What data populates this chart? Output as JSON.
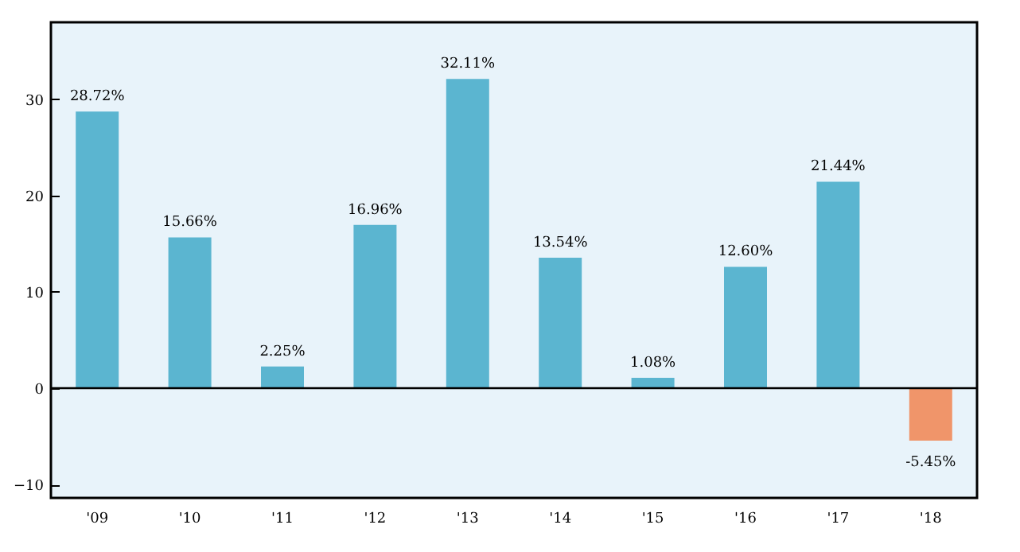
{
  "chart_data": {
    "type": "bar",
    "categories": [
      "'09",
      "'10",
      "'11",
      "'12",
      "'13",
      "'14",
      "'15",
      "'16",
      "'17",
      "'18"
    ],
    "values": [
      28.72,
      15.66,
      2.25,
      16.96,
      32.11,
      13.54,
      1.08,
      12.6,
      21.44,
      -5.45
    ],
    "colors": [
      "#5bb5d0",
      "#5bb5d0",
      "#5bb5d0",
      "#5bb5d0",
      "#5bb5d0",
      "#5bb5d0",
      "#5bb5d0",
      "#5bb5d0",
      "#5bb5d0",
      "#f0956a"
    ],
    "value_labels": [
      "28.72%",
      "15.66%",
      "2.25%",
      "16.96%",
      "32.11%",
      "13.54%",
      "1.08%",
      "12.60%",
      "21.44%",
      "-5.45%"
    ],
    "ylim": [
      -11.4,
      38
    ],
    "yticks": [
      -10,
      0,
      10,
      20,
      30
    ],
    "grid": false,
    "ref_lines": [
      {
        "axis": "y",
        "value": 0,
        "color": "#000000"
      }
    ]
  }
}
